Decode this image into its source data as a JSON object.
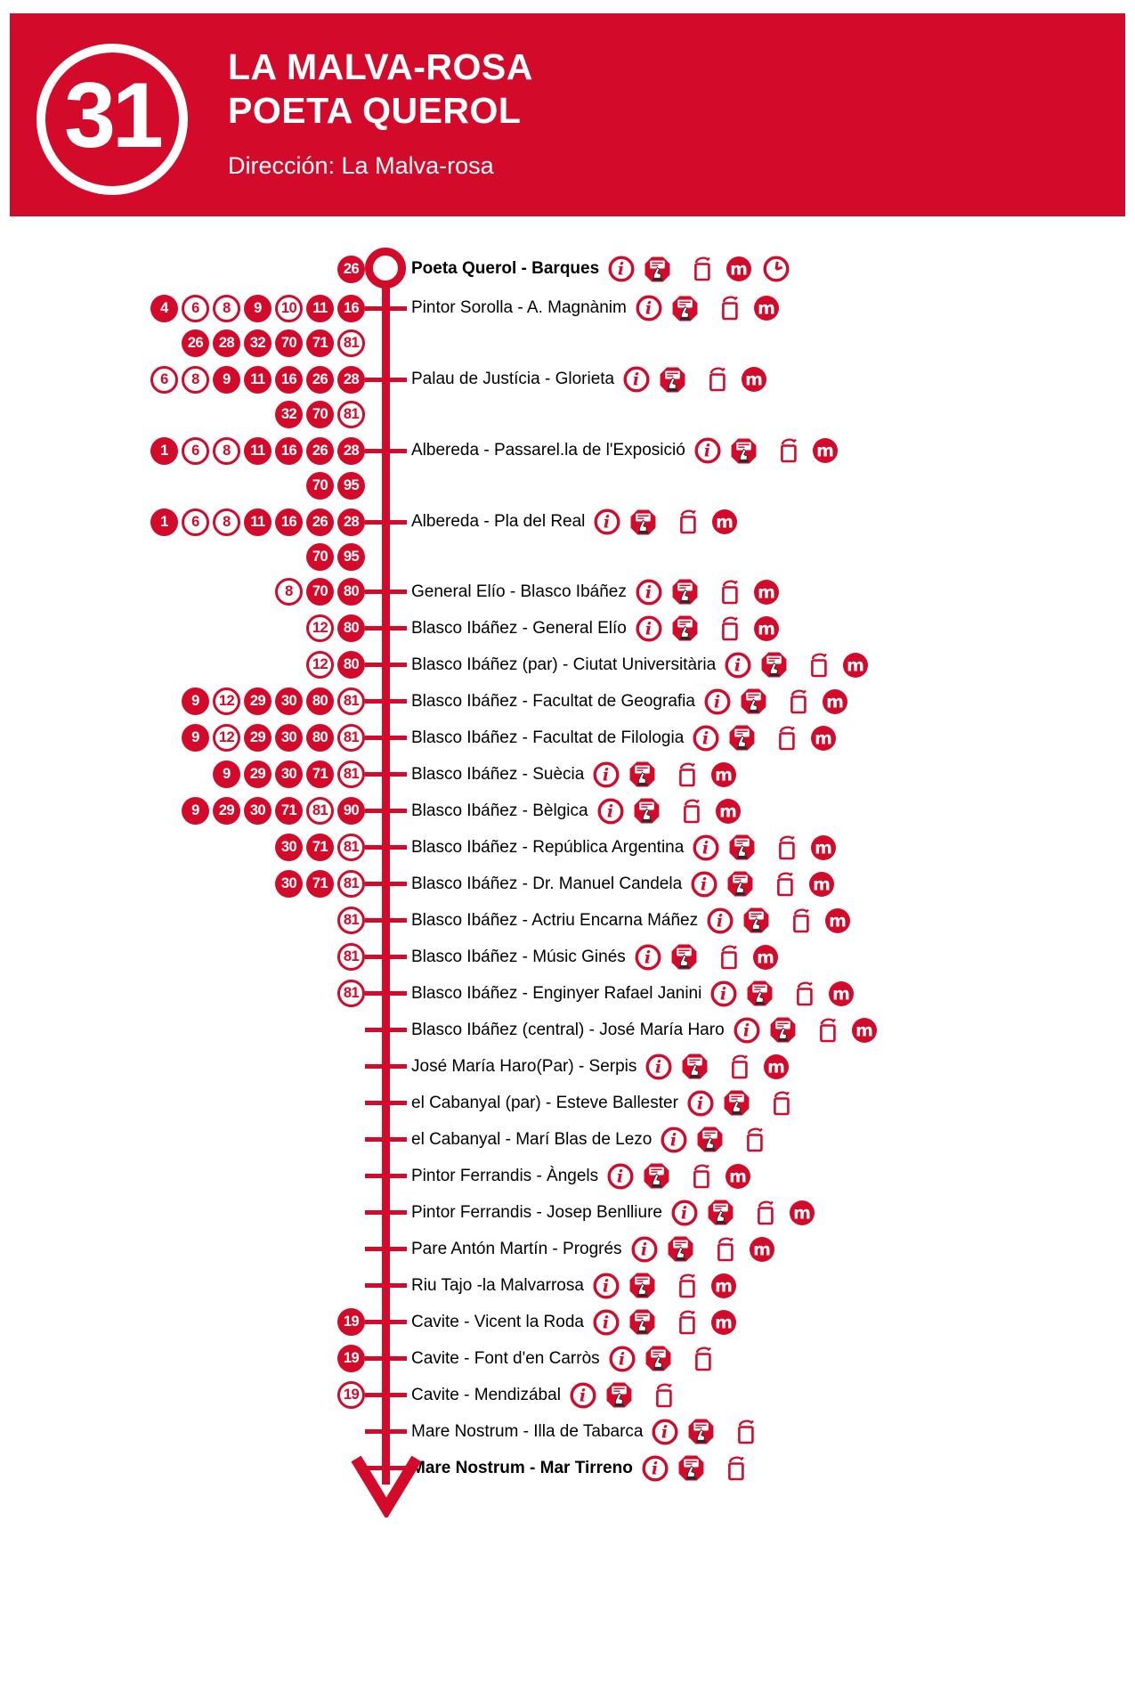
{
  "colors": {
    "primary_red": "#d40a2b",
    "text_black": "#000000",
    "background": "#ffffff"
  },
  "header": {
    "line_number": "31",
    "title_line1": "LA MALVA-ROSA",
    "title_line2": "POETA QUEROL",
    "direction": "Dirección: La Malva-rosa"
  },
  "icons": {
    "info": "info-icon (red ring, italic i)",
    "panel": "info-panel-icon (red octagon, screen and pointing hand)",
    "validator": "ticket-validator-post-icon (red outline box with handle)",
    "metro": "metrovalencia-icon (red circle, white m)",
    "clock": "schedule-clock-icon (red ring clock)"
  },
  "stops": [
    {
      "name": "Poeta Querol - Barques",
      "bold": true,
      "terminus": "start",
      "badge_rows": [
        [
          {
            "n": "26",
            "filled": true
          }
        ]
      ],
      "icons": [
        "info",
        "panel",
        "validator",
        "metro",
        "clock"
      ]
    },
    {
      "name": "Pintor Sorolla - A. Magnànim",
      "bold": false,
      "badge_rows": [
        [
          {
            "n": "4",
            "filled": true
          },
          {
            "n": "6",
            "filled": false
          },
          {
            "n": "8",
            "filled": false
          },
          {
            "n": "9",
            "filled": true
          },
          {
            "n": "10",
            "filled": false
          },
          {
            "n": "11",
            "filled": true
          },
          {
            "n": "16",
            "filled": true
          }
        ],
        [
          {
            "n": "26",
            "filled": true
          },
          {
            "n": "28",
            "filled": true
          },
          {
            "n": "32",
            "filled": true
          },
          {
            "n": "70",
            "filled": true
          },
          {
            "n": "71",
            "filled": true
          },
          {
            "n": "81",
            "filled": false
          }
        ]
      ],
      "icons": [
        "info",
        "panel",
        "validator",
        "metro"
      ]
    },
    {
      "name": "Palau de Justícia - Glorieta",
      "bold": false,
      "badge_rows": [
        [
          {
            "n": "6",
            "filled": false
          },
          {
            "n": "8",
            "filled": false
          },
          {
            "n": "9",
            "filled": true
          },
          {
            "n": "11",
            "filled": true
          },
          {
            "n": "16",
            "filled": true
          },
          {
            "n": "26",
            "filled": true
          },
          {
            "n": "28",
            "filled": true
          }
        ],
        [
          {
            "n": "32",
            "filled": true
          },
          {
            "n": "70",
            "filled": true
          },
          {
            "n": "81",
            "filled": false
          }
        ]
      ],
      "icons": [
        "info",
        "panel",
        "validator",
        "metro"
      ]
    },
    {
      "name": "Albereda - Passarel.la de l'Exposició",
      "bold": false,
      "badge_rows": [
        [
          {
            "n": "1",
            "filled": true
          },
          {
            "n": "6",
            "filled": false
          },
          {
            "n": "8",
            "filled": false
          },
          {
            "n": "11",
            "filled": true
          },
          {
            "n": "16",
            "filled": true
          },
          {
            "n": "26",
            "filled": true
          },
          {
            "n": "28",
            "filled": true
          }
        ],
        [
          {
            "n": "70",
            "filled": true
          },
          {
            "n": "95",
            "filled": true
          }
        ]
      ],
      "icons": [
        "info",
        "panel",
        "validator",
        "metro"
      ]
    },
    {
      "name": "Albereda - Pla del Real",
      "bold": false,
      "badge_rows": [
        [
          {
            "n": "1",
            "filled": true
          },
          {
            "n": "6",
            "filled": false
          },
          {
            "n": "8",
            "filled": false
          },
          {
            "n": "11",
            "filled": true
          },
          {
            "n": "16",
            "filled": true
          },
          {
            "n": "26",
            "filled": true
          },
          {
            "n": "28",
            "filled": true
          }
        ],
        [
          {
            "n": "70",
            "filled": true
          },
          {
            "n": "95",
            "filled": true
          }
        ]
      ],
      "icons": [
        "info",
        "panel",
        "validator",
        "metro"
      ]
    },
    {
      "name": "General Elío - Blasco Ibáñez",
      "bold": false,
      "badge_rows": [
        [
          {
            "n": "8",
            "filled": false
          },
          {
            "n": "70",
            "filled": true
          },
          {
            "n": "80",
            "filled": true
          }
        ]
      ],
      "icons": [
        "info",
        "panel",
        "validator",
        "metro"
      ]
    },
    {
      "name": "Blasco Ibáñez - General Elío",
      "bold": false,
      "badge_rows": [
        [
          {
            "n": "12",
            "filled": false
          },
          {
            "n": "80",
            "filled": true
          }
        ]
      ],
      "icons": [
        "info",
        "panel",
        "validator",
        "metro"
      ]
    },
    {
      "name": "Blasco Ibáñez (par) - Ciutat Universitària",
      "bold": false,
      "badge_rows": [
        [
          {
            "n": "12",
            "filled": false
          },
          {
            "n": "80",
            "filled": true
          }
        ]
      ],
      "icons": [
        "info",
        "panel",
        "validator",
        "metro"
      ]
    },
    {
      "name": "Blasco Ibáñez - Facultat de Geografia",
      "bold": false,
      "badge_rows": [
        [
          {
            "n": "9",
            "filled": true
          },
          {
            "n": "12",
            "filled": false
          },
          {
            "n": "29",
            "filled": true
          },
          {
            "n": "30",
            "filled": true
          },
          {
            "n": "80",
            "filled": true
          },
          {
            "n": "81",
            "filled": false
          }
        ]
      ],
      "icons": [
        "info",
        "panel",
        "validator",
        "metro"
      ]
    },
    {
      "name": "Blasco Ibáñez - Facultat de Filologia",
      "bold": false,
      "badge_rows": [
        [
          {
            "n": "9",
            "filled": true
          },
          {
            "n": "12",
            "filled": false
          },
          {
            "n": "29",
            "filled": true
          },
          {
            "n": "30",
            "filled": true
          },
          {
            "n": "80",
            "filled": true
          },
          {
            "n": "81",
            "filled": false
          }
        ]
      ],
      "icons": [
        "info",
        "panel",
        "validator",
        "metro"
      ]
    },
    {
      "name": "Blasco Ibáñez - Suècia",
      "bold": false,
      "badge_rows": [
        [
          {
            "n": "9",
            "filled": true
          },
          {
            "n": "29",
            "filled": true
          },
          {
            "n": "30",
            "filled": true
          },
          {
            "n": "71",
            "filled": true
          },
          {
            "n": "81",
            "filled": false
          }
        ]
      ],
      "icons": [
        "info",
        "panel",
        "validator",
        "metro"
      ]
    },
    {
      "name": "Blasco Ibáñez - Bèlgica",
      "bold": false,
      "badge_rows": [
        [
          {
            "n": "9",
            "filled": true
          },
          {
            "n": "29",
            "filled": true
          },
          {
            "n": "30",
            "filled": true
          },
          {
            "n": "71",
            "filled": true
          },
          {
            "n": "81",
            "filled": false
          },
          {
            "n": "90",
            "filled": true
          }
        ]
      ],
      "icons": [
        "info",
        "panel",
        "validator",
        "metro"
      ]
    },
    {
      "name": "Blasco Ibáñez - República Argentina",
      "bold": false,
      "badge_rows": [
        [
          {
            "n": "30",
            "filled": true
          },
          {
            "n": "71",
            "filled": true
          },
          {
            "n": "81",
            "filled": false
          }
        ]
      ],
      "icons": [
        "info",
        "panel",
        "validator",
        "metro"
      ]
    },
    {
      "name": "Blasco Ibáñez - Dr. Manuel Candela",
      "bold": false,
      "badge_rows": [
        [
          {
            "n": "30",
            "filled": true
          },
          {
            "n": "71",
            "filled": true
          },
          {
            "n": "81",
            "filled": false
          }
        ]
      ],
      "icons": [
        "info",
        "panel",
        "validator",
        "metro"
      ]
    },
    {
      "name": "Blasco Ibáñez - Actriu Encarna Máñez",
      "bold": false,
      "badge_rows": [
        [
          {
            "n": "81",
            "filled": false
          }
        ]
      ],
      "icons": [
        "info",
        "panel",
        "validator",
        "metro"
      ]
    },
    {
      "name": "Blasco Ibáñez - Músic Ginés",
      "bold": false,
      "badge_rows": [
        [
          {
            "n": "81",
            "filled": false
          }
        ]
      ],
      "icons": [
        "info",
        "panel",
        "validator",
        "metro"
      ]
    },
    {
      "name": "Blasco Ibáñez - Enginyer Rafael Janini",
      "bold": false,
      "badge_rows": [
        [
          {
            "n": "81",
            "filled": false
          }
        ]
      ],
      "icons": [
        "info",
        "panel",
        "validator",
        "metro"
      ]
    },
    {
      "name": "Blasco Ibáñez (central) - José María Haro",
      "bold": false,
      "badge_rows": [],
      "icons": [
        "info",
        "panel",
        "validator",
        "metro"
      ]
    },
    {
      "name": "José María Haro(Par) - Serpis",
      "bold": false,
      "badge_rows": [],
      "icons": [
        "info",
        "panel",
        "validator",
        "metro"
      ]
    },
    {
      "name": "el Cabanyal (par) - Esteve Ballester",
      "bold": false,
      "badge_rows": [],
      "icons": [
        "info",
        "panel",
        "validator"
      ]
    },
    {
      "name": "el Cabanyal - Marí Blas de Lezo",
      "bold": false,
      "badge_rows": [],
      "icons": [
        "info",
        "panel",
        "validator"
      ]
    },
    {
      "name": "Pintor Ferrandis - Àngels",
      "bold": false,
      "badge_rows": [],
      "icons": [
        "info",
        "panel",
        "validator",
        "metro"
      ]
    },
    {
      "name": "Pintor Ferrandis - Josep Benlliure",
      "bold": false,
      "badge_rows": [],
      "icons": [
        "info",
        "panel",
        "validator",
        "metro"
      ]
    },
    {
      "name": "Pare Antón Martín - Progrés",
      "bold": false,
      "badge_rows": [],
      "icons": [
        "info",
        "panel",
        "validator",
        "metro"
      ]
    },
    {
      "name": "Riu Tajo -la Malvarrosa",
      "bold": false,
      "badge_rows": [],
      "icons": [
        "info",
        "panel",
        "validator",
        "metro"
      ]
    },
    {
      "name": "Cavite - Vicent la Roda",
      "bold": false,
      "badge_rows": [
        [
          {
            "n": "19",
            "filled": true
          }
        ]
      ],
      "icons": [
        "info",
        "panel",
        "validator",
        "metro"
      ]
    },
    {
      "name": "Cavite - Font d'en Carròs",
      "bold": false,
      "badge_rows": [
        [
          {
            "n": "19",
            "filled": true
          }
        ]
      ],
      "icons": [
        "info",
        "panel",
        "validator"
      ]
    },
    {
      "name": "Cavite - Mendizábal",
      "bold": false,
      "badge_rows": [
        [
          {
            "n": "19",
            "filled": false
          }
        ]
      ],
      "icons": [
        "info",
        "panel",
        "validator"
      ]
    },
    {
      "name": "Mare Nostrum - Illa de Tabarca",
      "bold": false,
      "badge_rows": [],
      "icons": [
        "info",
        "panel",
        "validator"
      ]
    },
    {
      "name": "Mare Nostrum - Mar Tirreno",
      "bold": true,
      "terminus": "end",
      "badge_rows": [],
      "icons": [
        "info",
        "panel",
        "validator"
      ]
    }
  ]
}
